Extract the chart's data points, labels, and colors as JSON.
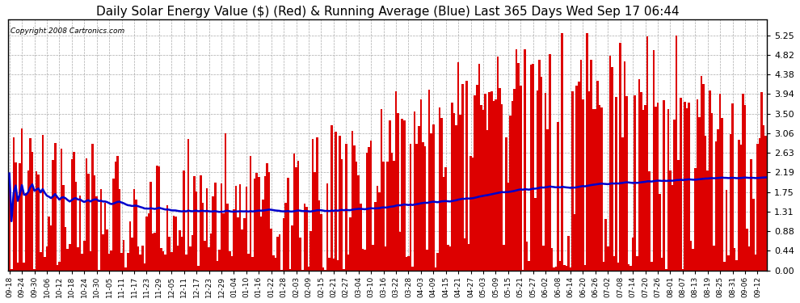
{
  "title": "Daily Solar Energy Value ($) (Red) & Running Average (Blue) Last 365 Days Wed Sep 17 06:44",
  "copyright": "Copyright 2008 Cartronics.com",
  "bar_color": "#dd0000",
  "line_color": "#0000cc",
  "background_color": "#ffffff",
  "grid_color": "#aaaaaa",
  "yticks": [
    0.0,
    0.44,
    0.88,
    1.31,
    1.75,
    2.19,
    2.63,
    3.06,
    3.5,
    3.94,
    4.38,
    4.82,
    5.25
  ],
  "ylim": [
    0.0,
    5.6
  ],
  "title_fontsize": 11,
  "tick_fontsize": 8,
  "start_date": "2007-09-18",
  "n_days": 365,
  "tick_every": 6
}
